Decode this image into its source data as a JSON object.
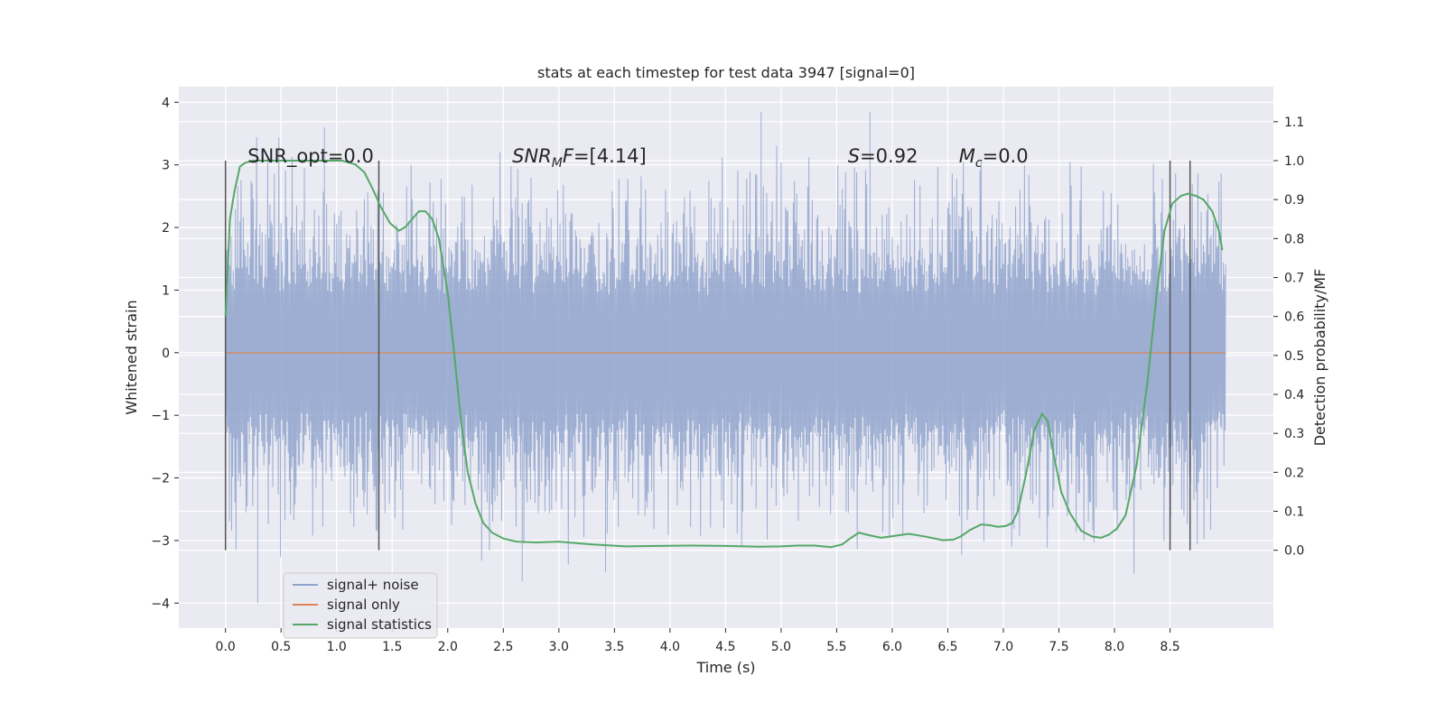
{
  "chart_data": {
    "type": "line",
    "title": "stats at each timestep for test data 3947 [signal=0]",
    "xlabel": "Time (s)",
    "ylabel": "Whitened strain",
    "y2label": "Detection probability/MF",
    "xlim": [
      -0.42,
      9.43
    ],
    "ylim": [
      -4.4,
      4.25
    ],
    "y2lim": [
      -0.2,
      1.19
    ],
    "x_ticks": [
      0.0,
      0.5,
      1.0,
      1.5,
      2.0,
      2.5,
      3.0,
      3.5,
      4.0,
      4.5,
      5.0,
      5.5,
      6.0,
      6.5,
      7.0,
      7.5,
      8.0,
      8.5
    ],
    "x_tick_labels": [
      "0.0",
      "0.5",
      "1.0",
      "1.5",
      "2.0",
      "2.5",
      "3.0",
      "3.5",
      "4.0",
      "4.5",
      "5.0",
      "5.5",
      "6.0",
      "6.5",
      "7.0",
      "7.5",
      "8.0",
      "8.5"
    ],
    "y_ticks": [
      4,
      3,
      2,
      1,
      0,
      -1,
      -2,
      -3,
      -4
    ],
    "y_tick_labels": [
      "4",
      "3",
      "2",
      "1",
      "0",
      "−1",
      "−2",
      "−3",
      "−4"
    ],
    "y2_ticks": [
      0.0,
      0.1,
      0.2,
      0.3,
      0.4,
      0.5,
      0.6,
      0.7,
      0.8,
      0.9,
      1.0,
      1.1
    ],
    "y2_tick_labels": [
      "0.0",
      "0.1",
      "0.2",
      "0.3",
      "0.4",
      "0.5",
      "0.6",
      "0.7",
      "0.8",
      "0.9",
      "1.0",
      "1.1"
    ],
    "grid": true,
    "colors": {
      "background": "#eaeaf2",
      "grid": "#ffffff",
      "noise": "#8fa3cc",
      "signal": "#dd8452",
      "stat": "#55a868",
      "marker": "#555555"
    },
    "noise_trace": {
      "x_range": [
        0.0,
        9.0
      ],
      "approx_bounds": [
        -3.5,
        3.6
      ],
      "extreme_values": [
        {
          "x": 0.29,
          "y": -4.0
        },
        {
          "x": 0.89,
          "y": 3.6
        },
        {
          "x": 2.67,
          "y": -3.65
        },
        {
          "x": 5.8,
          "y": 3.85
        },
        {
          "x": 4.82,
          "y": 3.85
        },
        {
          "x": 3.42,
          "y": -3.5
        }
      ]
    },
    "signal_only": {
      "x": [
        0.0,
        9.0
      ],
      "y": [
        0.0,
        0.0
      ]
    },
    "series": [
      {
        "name": "signal statistics",
        "axis": "right",
        "x": [
          0.0,
          0.04,
          0.08,
          0.13,
          0.18,
          0.25,
          0.35,
          0.5,
          0.7,
          0.9,
          1.05,
          1.17,
          1.25,
          1.32,
          1.4,
          1.48,
          1.56,
          1.62,
          1.68,
          1.74,
          1.8,
          1.86,
          1.92,
          2.0,
          2.06,
          2.12,
          2.18,
          2.25,
          2.32,
          2.4,
          2.5,
          2.62,
          2.8,
          3.0,
          3.3,
          3.6,
          3.9,
          4.2,
          4.5,
          4.8,
          5.0,
          5.15,
          5.3,
          5.45,
          5.55,
          5.62,
          5.7,
          5.8,
          5.9,
          6.0,
          6.15,
          6.3,
          6.45,
          6.55,
          6.62,
          6.7,
          6.8,
          6.88,
          6.95,
          7.02,
          7.08,
          7.13,
          7.2,
          7.28,
          7.35,
          7.4,
          7.45,
          7.52,
          7.6,
          7.7,
          7.8,
          7.88,
          7.95,
          8.02,
          8.1,
          8.2,
          8.3,
          8.38,
          8.45,
          8.52,
          8.6,
          8.66,
          8.73,
          8.8,
          8.88,
          8.94,
          8.97
        ],
        "y": [
          0.6,
          0.85,
          0.92,
          0.985,
          0.995,
          1.0,
          1.0,
          1.0,
          1.0,
          1.0,
          1.0,
          0.99,
          0.97,
          0.93,
          0.88,
          0.84,
          0.82,
          0.83,
          0.85,
          0.87,
          0.87,
          0.85,
          0.8,
          0.66,
          0.5,
          0.33,
          0.2,
          0.12,
          0.07,
          0.045,
          0.03,
          0.022,
          0.02,
          0.022,
          0.015,
          0.01,
          0.011,
          0.012,
          0.011,
          0.009,
          0.01,
          0.012,
          0.012,
          0.008,
          0.015,
          0.03,
          0.045,
          0.038,
          0.032,
          0.036,
          0.042,
          0.035,
          0.026,
          0.027,
          0.036,
          0.052,
          0.066,
          0.064,
          0.06,
          0.062,
          0.07,
          0.1,
          0.19,
          0.31,
          0.35,
          0.33,
          0.25,
          0.15,
          0.095,
          0.05,
          0.035,
          0.032,
          0.04,
          0.055,
          0.09,
          0.22,
          0.44,
          0.66,
          0.82,
          0.89,
          0.91,
          0.915,
          0.91,
          0.9,
          0.87,
          0.82,
          0.77
        ]
      }
    ],
    "vertical_markers": [
      0.0,
      1.38,
      8.5,
      8.68
    ],
    "annotations": [
      {
        "id": "snr_opt",
        "x": 0.2,
        "text": "SNR_opt=0.0"
      },
      {
        "id": "snr_mf",
        "x": 2.58,
        "text_main": "SNR",
        "text_sub": "M",
        "text_italic_tail": "F",
        "text_rest": "=[4.14]"
      },
      {
        "id": "s_stat",
        "x": 5.6,
        "text_main": "S",
        "text_rest": "=0.92"
      },
      {
        "id": "mc",
        "x": 6.6,
        "text_main": "M",
        "text_sub": "c",
        "text_rest": "=0.0"
      }
    ],
    "legend": {
      "location": "lower-left",
      "entries": [
        {
          "label": "signal+ noise",
          "color": "#8fa3cc"
        },
        {
          "label": "signal only",
          "color": "#dd8452"
        },
        {
          "label": "signal statistics",
          "color": "#55a868"
        }
      ]
    }
  }
}
